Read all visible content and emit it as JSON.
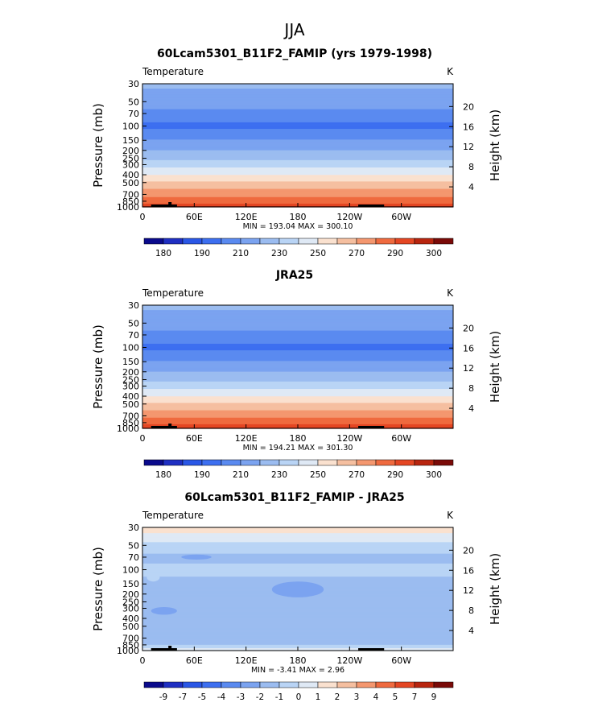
{
  "season": "JJA",
  "panels": [
    {
      "title": "60Lcam5301_B11F2_FAMIP (yrs 1979-1998)",
      "variable": "Temperature",
      "units": "K",
      "stats": "MIN = 193.04   MAX = 300.10",
      "colorbar_labels": [
        "180",
        "190",
        "210",
        "230",
        "250",
        "270",
        "290",
        "300"
      ]
    },
    {
      "title": "JRA25",
      "variable": "Temperature",
      "units": "K",
      "stats": "MIN = 194.21   MAX = 301.30",
      "colorbar_labels": [
        "180",
        "190",
        "210",
        "230",
        "250",
        "270",
        "290",
        "300"
      ]
    },
    {
      "title": "60Lcam5301_B11F2_FAMIP - JRA25",
      "variable": "Temperature",
      "units": "K",
      "stats": "MIN =   -3.41   MAX =     2.96",
      "colorbar_labels": [
        "-9",
        "-7",
        "-5",
        "-4",
        "-3",
        "-2",
        "-1",
        "0",
        "1",
        "2",
        "3",
        "4",
        "5",
        "7",
        "9"
      ]
    }
  ],
  "chart_data": [
    {
      "type": "heatmap",
      "title": "60Lcam5301_B11F2_FAMIP (yrs 1979-1998)",
      "xlabel": "",
      "ylabel": "Pressure (mb)",
      "y2label": "Height (km)",
      "xticks": [
        "0",
        "60E",
        "120E",
        "180",
        "120W",
        "60W"
      ],
      "yticks": [
        "30",
        "50",
        "70",
        "100",
        "150",
        "200",
        "250",
        "300",
        "400",
        "500",
        "700",
        "850",
        "1000"
      ],
      "y2ticks": [
        "4",
        "8",
        "12",
        "16",
        "20"
      ],
      "xlim": [
        0,
        360
      ],
      "ylim": [
        1000,
        30
      ],
      "yscale": "log",
      "levels": [
        180,
        185,
        190,
        200,
        210,
        220,
        230,
        240,
        250,
        260,
        270,
        280,
        290,
        295,
        300
      ],
      "colors": [
        "#0a0a8c",
        "#1f2fc2",
        "#2a57e6",
        "#3d6ff0",
        "#5a8af0",
        "#7ba3f0",
        "#9bbcf0",
        "#b9d4f5",
        "#dfe9f5",
        "#fae1cf",
        "#f5bfa0",
        "#f4976f",
        "#ef6a3f",
        "#e44623",
        "#b8250f",
        "#7a0a08"
      ],
      "profile": [
        {
          "p": 30,
          "v": 222
        },
        {
          "p": 40,
          "v": 218
        },
        {
          "p": 55,
          "v": 213
        },
        {
          "p": 70,
          "v": 207
        },
        {
          "p": 85,
          "v": 201
        },
        {
          "p": 100,
          "v": 198
        },
        {
          "p": 125,
          "v": 203
        },
        {
          "p": 150,
          "v": 211
        },
        {
          "p": 200,
          "v": 220
        },
        {
          "p": 250,
          "v": 228
        },
        {
          "p": 300,
          "v": 236
        },
        {
          "p": 400,
          "v": 250
        },
        {
          "p": 500,
          "v": 262
        },
        {
          "p": 600,
          "v": 270
        },
        {
          "p": 700,
          "v": 276
        },
        {
          "p": 850,
          "v": 286
        },
        {
          "p": 1000,
          "v": 296
        }
      ],
      "min": 193.04,
      "max": 300.1
    },
    {
      "type": "heatmap",
      "title": "JRA25",
      "xlabel": "",
      "ylabel": "Pressure (mb)",
      "y2label": "Height (km)",
      "xticks": [
        "0",
        "60E",
        "120E",
        "180",
        "120W",
        "60W"
      ],
      "yticks": [
        "30",
        "50",
        "70",
        "100",
        "150",
        "200",
        "250",
        "300",
        "400",
        "500",
        "700",
        "850",
        "1000"
      ],
      "y2ticks": [
        "4",
        "8",
        "12",
        "16",
        "20"
      ],
      "xlim": [
        0,
        360
      ],
      "ylim": [
        1000,
        30
      ],
      "yscale": "log",
      "levels": [
        180,
        185,
        190,
        200,
        210,
        220,
        230,
        240,
        250,
        260,
        270,
        280,
        290,
        295,
        300
      ],
      "colors": [
        "#0a0a8c",
        "#1f2fc2",
        "#2a57e6",
        "#3d6ff0",
        "#5a8af0",
        "#7ba3f0",
        "#9bbcf0",
        "#b9d4f5",
        "#dfe9f5",
        "#fae1cf",
        "#f5bfa0",
        "#f4976f",
        "#ef6a3f",
        "#e44623",
        "#b8250f",
        "#7a0a08"
      ],
      "profile": [
        {
          "p": 30,
          "v": 222
        },
        {
          "p": 40,
          "v": 218
        },
        {
          "p": 55,
          "v": 213
        },
        {
          "p": 70,
          "v": 207
        },
        {
          "p": 85,
          "v": 201
        },
        {
          "p": 100,
          "v": 198
        },
        {
          "p": 125,
          "v": 203
        },
        {
          "p": 150,
          "v": 211
        },
        {
          "p": 200,
          "v": 220
        },
        {
          "p": 250,
          "v": 228
        },
        {
          "p": 300,
          "v": 236
        },
        {
          "p": 400,
          "v": 250
        },
        {
          "p": 500,
          "v": 262
        },
        {
          "p": 600,
          "v": 270
        },
        {
          "p": 700,
          "v": 277
        },
        {
          "p": 850,
          "v": 287
        },
        {
          "p": 1000,
          "v": 297
        }
      ],
      "min": 194.21,
      "max": 301.3
    },
    {
      "type": "heatmap",
      "title": "60Lcam5301_B11F2_FAMIP - JRA25",
      "xlabel": "",
      "ylabel": "Pressure (mb)",
      "y2label": "Height (km)",
      "xticks": [
        "0",
        "60E",
        "120E",
        "180",
        "120W",
        "60W"
      ],
      "yticks": [
        "30",
        "50",
        "70",
        "100",
        "150",
        "200",
        "250",
        "300",
        "400",
        "500",
        "700",
        "850",
        "1000"
      ],
      "y2ticks": [
        "4",
        "8",
        "12",
        "16",
        "20"
      ],
      "xlim": [
        0,
        360
      ],
      "ylim": [
        1000,
        30
      ],
      "yscale": "log",
      "levels": [
        -9,
        -7,
        -5,
        -4,
        -3,
        -2,
        -1,
        0,
        1,
        2,
        3,
        4,
        5,
        7,
        9
      ],
      "colors": [
        "#0a0a8c",
        "#1f2fc2",
        "#2a57e6",
        "#3d6ff0",
        "#5a8af0",
        "#7ba3f0",
        "#9bbcf0",
        "#b9d4f5",
        "#dfe9f5",
        "#fae1cf",
        "#f5bfa0",
        "#f4976f",
        "#ef6a3f",
        "#e44623",
        "#b8250f",
        "#7a0a08"
      ],
      "profile": [
        {
          "p": 30,
          "v": 1.5
        },
        {
          "p": 40,
          "v": 0.6
        },
        {
          "p": 50,
          "v": -0.5
        },
        {
          "p": 70,
          "v": -1.2
        },
        {
          "p": 100,
          "v": -0.8
        },
        {
          "p": 150,
          "v": -1.2
        },
        {
          "p": 200,
          "v": -1.4
        },
        {
          "p": 300,
          "v": -1.2
        },
        {
          "p": 500,
          "v": -1.1
        },
        {
          "p": 700,
          "v": -1.2
        },
        {
          "p": 850,
          "v": -1.1
        },
        {
          "p": 950,
          "v": 0.3
        },
        {
          "p": 1000,
          "v": 0.3
        }
      ],
      "anomalies": [
        {
          "lon": [
            45,
            80
          ],
          "p": [
            65,
            75
          ],
          "v": -2.4
        },
        {
          "lon": [
            10,
            40
          ],
          "p": [
            290,
            360
          ],
          "v": -2.4
        },
        {
          "lon": [
            150,
            210
          ],
          "p": [
            140,
            220
          ],
          "v": -2.3
        },
        {
          "lon": [
            200,
            270
          ],
          "p": [
            90,
            120
          ],
          "v": -0.6
        },
        {
          "lon": [
            5,
            20
          ],
          "p": [
            110,
            140
          ],
          "v": -0.5
        }
      ],
      "min": -3.41,
      "max": 2.96
    }
  ]
}
